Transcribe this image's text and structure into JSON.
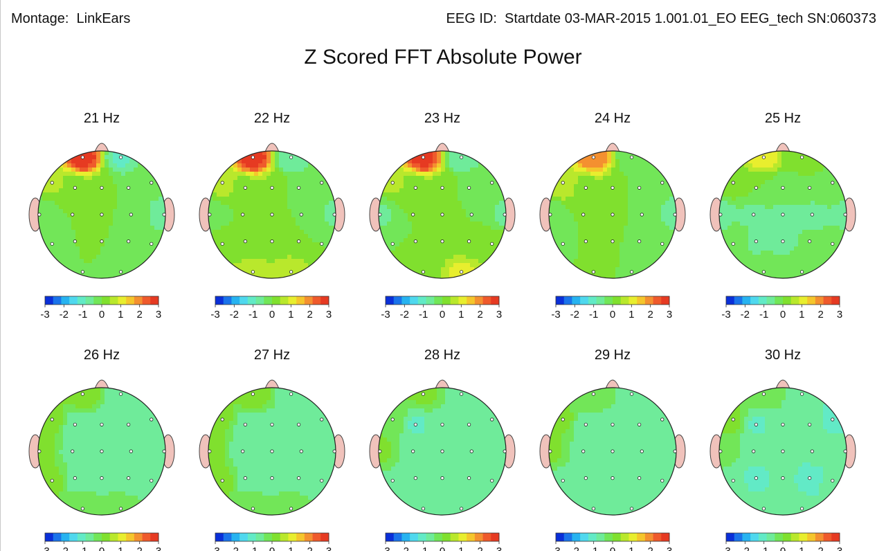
{
  "header": {
    "montage": "Montage:  LinkEars",
    "eeg_id": "EEG ID:  Startdate 03-MAR-2015 1.001.01_EO EEG_tech SN:060373"
  },
  "chart_data": {
    "type": "heatmap",
    "title": "Z Scored FFT Absolute Power",
    "colorbar": {
      "ticks": [
        "-3",
        "-2",
        "-1",
        "0",
        "1",
        "2",
        "3"
      ],
      "range": [
        -3,
        3
      ],
      "colors": [
        "#0a2fd8",
        "#1a73ea",
        "#27b3f0",
        "#4fd8ee",
        "#62eac6",
        "#6feb9a",
        "#72e658",
        "#80e02e",
        "#b9e82c",
        "#e8ee2e",
        "#f5c62c",
        "#f49030",
        "#ef5a2c",
        "#e63a22"
      ]
    },
    "electrode_layout": "10-20 (19 channels)",
    "maps": [
      {
        "label": "21 Hz",
        "z": {
          "Fp1": 2.8,
          "Fp2": -0.9,
          "F7": 0.5,
          "F3": 0.1,
          "Fz": 0.3,
          "F4": -0.3,
          "F8": -0.1,
          "T3": -0.4,
          "C3": 0,
          "Cz": 0,
          "C4": 0,
          "T4": -0.8,
          "T5": 0,
          "P3": 0,
          "Pz": 0,
          "P4": 0,
          "T6": 0,
          "O1": 0,
          "O2": 0
        }
      },
      {
        "label": "22 Hz",
        "z": {
          "Fp1": 2.8,
          "Fp2": -0.8,
          "F7": 0.6,
          "F3": 0.2,
          "Fz": 0.4,
          "F4": -0.2,
          "F8": -0.1,
          "T3": -0.4,
          "C3": 0,
          "Cz": 0,
          "C4": 0,
          "T4": -0.5,
          "T5": 0.3,
          "P3": 0,
          "Pz": 0,
          "P4": 0,
          "T6": 0,
          "O1": 0.7,
          "O2": 0.8
        }
      },
      {
        "label": "23 Hz",
        "z": {
          "Fp1": 2.7,
          "Fp2": -0.7,
          "F7": 0.5,
          "F3": 0.2,
          "Fz": 0.3,
          "F4": -0.1,
          "F8": -0.1,
          "T3": -0.5,
          "C3": 0,
          "Cz": 0,
          "C4": 0,
          "T4": -0.5,
          "T5": 0,
          "P3": 0,
          "Pz": 0,
          "P4": 0,
          "T6": 0.3,
          "O1": 0.2,
          "O2": 0.9
        }
      },
      {
        "label": "24 Hz",
        "z": {
          "Fp1": 2.0,
          "Fp2": -0.3,
          "F7": 0.8,
          "F3": 0.2,
          "Fz": 0.3,
          "F4": -0.2,
          "F8": -0.3,
          "T3": -0.3,
          "C3": 0,
          "Cz": 0,
          "C4": 0,
          "T4": -0.6,
          "T5": 0,
          "P3": 0,
          "Pz": 0,
          "P4": 0,
          "T6": 0,
          "O1": 0,
          "O2": 0
        }
      },
      {
        "label": "25 Hz",
        "z": {
          "Fp1": 1.0,
          "Fp2": 0.1,
          "F7": 0.3,
          "F3": 0,
          "Fz": -0.2,
          "F4": 0,
          "F8": 0,
          "T3": -0.6,
          "C3": -0.5,
          "Cz": -0.5,
          "C4": -0.6,
          "T4": -0.5,
          "T5": 0,
          "P3": -0.5,
          "Pz": -0.5,
          "P4": -0.4,
          "T6": -0.3,
          "O1": 0,
          "O2": 0
        }
      },
      {
        "label": "26 Hz",
        "z": {
          "Fp1": 0.3,
          "Fp2": -0.6,
          "F7": 0.2,
          "F3": -0.6,
          "Fz": -0.6,
          "F4": -0.6,
          "F8": -0.6,
          "T3": 0.2,
          "C3": -0.5,
          "Cz": -0.6,
          "C4": -0.6,
          "T4": -0.6,
          "T5": 0.2,
          "P3": -0.6,
          "Pz": -0.6,
          "P4": -0.6,
          "T6": -0.6,
          "O1": -0.1,
          "O2": -0.2
        }
      },
      {
        "label": "27 Hz",
        "z": {
          "Fp1": 0.4,
          "Fp2": -0.6,
          "F7": 0.1,
          "F3": -0.6,
          "Fz": -0.6,
          "F4": -0.6,
          "F8": -0.6,
          "T3": 0.4,
          "C3": -0.6,
          "Cz": -0.6,
          "C4": -0.6,
          "T4": -0.6,
          "T5": 0.2,
          "P3": -0.6,
          "Pz": -0.6,
          "P4": -0.6,
          "T6": -0.6,
          "O1": -0.2,
          "O2": -0.1
        }
      },
      {
        "label": "28 Hz",
        "z": {
          "Fp1": 0.1,
          "Fp2": -0.6,
          "F7": 0,
          "F3": -0.9,
          "Fz": -0.6,
          "F4": -0.6,
          "F8": -0.6,
          "T3": 0.1,
          "C3": -0.6,
          "Cz": -0.6,
          "C4": -0.6,
          "T4": -0.6,
          "T5": -0.5,
          "P3": -0.6,
          "Pz": -0.6,
          "P4": -0.6,
          "T6": -0.6,
          "O1": -0.6,
          "O2": -0.6
        }
      },
      {
        "label": "29 Hz",
        "z": {
          "Fp1": 0,
          "Fp2": -0.6,
          "F7": 0.1,
          "F3": -0.6,
          "Fz": -0.6,
          "F4": -0.6,
          "F8": -0.6,
          "T3": 0.1,
          "C3": -0.6,
          "Cz": -0.6,
          "C4": -0.6,
          "T4": -0.6,
          "T5": -0.6,
          "P3": -0.6,
          "Pz": -0.6,
          "P4": -0.6,
          "T6": -0.6,
          "O1": -0.6,
          "O2": -0.6
        }
      },
      {
        "label": "30 Hz",
        "z": {
          "Fp1": 0,
          "Fp2": -0.6,
          "F7": 0.1,
          "F3": -0.9,
          "Fz": -0.6,
          "F4": -0.6,
          "F8": -1.0,
          "T3": 0,
          "C3": -0.6,
          "Cz": -0.6,
          "C4": -0.6,
          "T4": -0.6,
          "T5": -0.6,
          "P3": -1.0,
          "Pz": -0.6,
          "P4": -1.2,
          "T6": -0.6,
          "O1": -0.6,
          "O2": -0.6
        }
      }
    ]
  }
}
